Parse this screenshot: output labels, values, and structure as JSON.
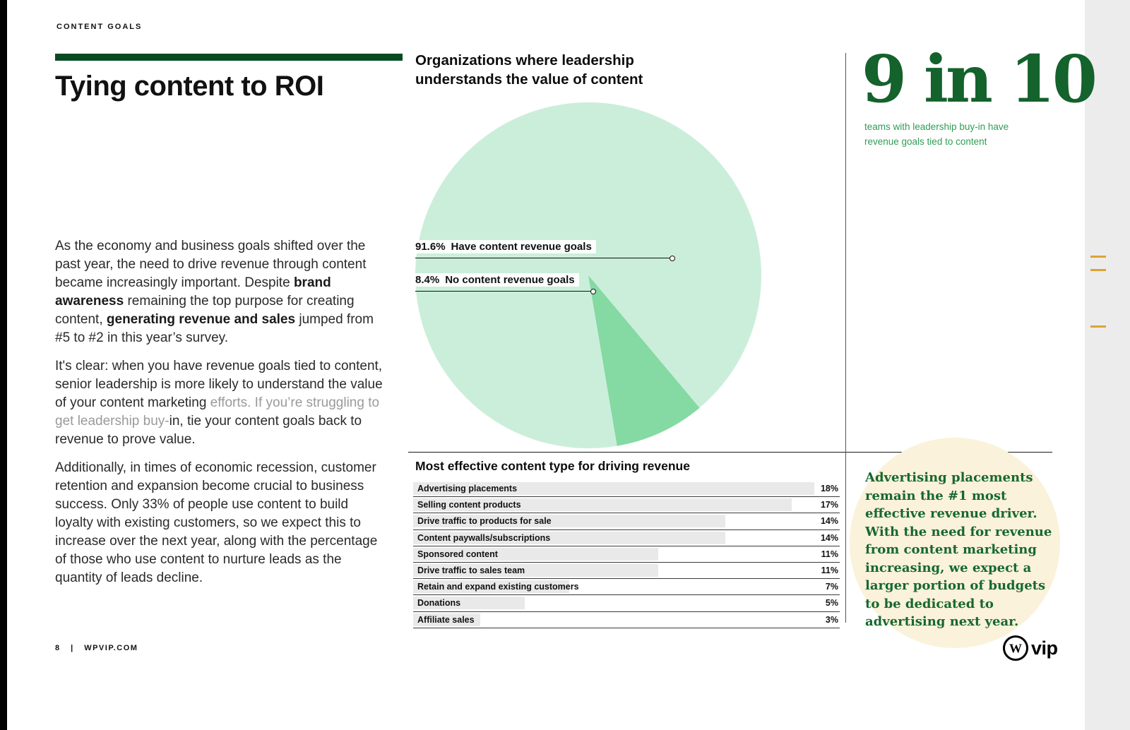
{
  "page": {
    "eyebrow": "CONTENT GOALS",
    "footer": {
      "page_number": "8",
      "separator": "|",
      "site": "WPVIP.COM"
    },
    "logo_mark": "W",
    "logo_text": "vip"
  },
  "left": {
    "title": "Tying content to ROI"
  },
  "article": {
    "paragraphs": [
      [
        {
          "t": "As the economy and business goals shifted over the past year, the need to drive revenue through content became increasingly important. Despite "
        },
        {
          "t": "brand awareness",
          "b": true
        },
        {
          "t": " remaining the top purpose for creating content, "
        },
        {
          "t": "generating revenue and sales",
          "b": true
        },
        {
          "t": " jumped from #5 to #2 in this year’s survey."
        }
      ],
      [
        {
          "t": "It's clear: when you have revenue goals tied to content, senior leadership is more likely to understand the value of your content marketing "
        },
        {
          "t": "efforts. If you’re struggling to get leadership buy-",
          "m": true
        },
        {
          "t": "in, tie your content goals back to revenue to prove value."
        }
      ],
      [
        {
          "t": "Additionally, in times of economic recession, customer retention and expansion become crucial to business success. Only 33% of people use content to build loyalty with existing customers, so we expect this to increase over the next year, along with the percentage of those who use content to nurture leads as the quantity of leads decline."
        }
      ]
    ]
  },
  "stat": {
    "value": "9 in 10",
    "caption": "teams with leadership buy-in have revenue goals tied to content"
  },
  "callout": {
    "text": "Advertising placements remain the #1 most effective revenue driver. With the need for revenue from content marketing increasing, we expect a larger portion of budgets to be dedicated to advertising next year."
  },
  "colors": {
    "dark_green_bar": "#0a4a20",
    "stat_green": "#14622c",
    "caption_green": "#2f9e52",
    "pie_light": "#cbeeda",
    "pie_dark": "#84daa2",
    "cream": "#faf2da",
    "edge_accent_orange": "#dda435"
  },
  "chart_data": [
    {
      "type": "pie",
      "title": "Organizations where leadership understands the value of content",
      "slices": [
        {
          "label": "Have content revenue goals",
          "pct_label": "91.6%",
          "value": 91.6,
          "color": "#cbeeda"
        },
        {
          "label": "No content revenue goals",
          "pct_label": "8.4%",
          "value": 8.4,
          "color": "#84daa2"
        }
      ],
      "legend_position": "left-leader-lines"
    },
    {
      "type": "bar",
      "title": "Most effective content type for driving revenue",
      "orientation": "horizontal",
      "categories": [
        "Advertising placements",
        "Selling content products",
        "Drive traffic to products for sale",
        "Content paywalls/subscriptions",
        "Sponsored content",
        "Drive traffic to sales team",
        "Retain and expand existing customers",
        "Donations",
        "Affiliate sales"
      ],
      "values": [
        18,
        17,
        14,
        14,
        11,
        11,
        7,
        5,
        3
      ],
      "unit": "%",
      "xlim": [
        0,
        18
      ]
    }
  ]
}
